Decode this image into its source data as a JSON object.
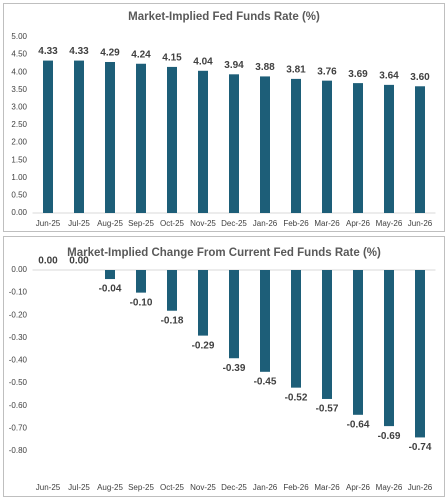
{
  "chart_data": [
    {
      "type": "bar",
      "title": "Market-Implied Fed Funds Rate (%)",
      "categories": [
        "Jun-25",
        "Jul-25",
        "Aug-25",
        "Sep-25",
        "Oct-25",
        "Nov-25",
        "Dec-25",
        "Jan-26",
        "Feb-26",
        "Mar-26",
        "Apr-26",
        "May-26",
        "Jun-26"
      ],
      "values": [
        4.33,
        4.33,
        4.29,
        4.24,
        4.15,
        4.04,
        3.94,
        3.88,
        3.81,
        3.76,
        3.69,
        3.64,
        3.6
      ],
      "value_labels": [
        "4.33",
        "4.33",
        "4.29",
        "4.24",
        "4.15",
        "4.04",
        "3.94",
        "3.88",
        "3.81",
        "3.76",
        "3.69",
        "3.64",
        "3.60"
      ],
      "color": "#1d5e78",
      "ylim": [
        0,
        5
      ],
      "yticks": [
        {
          "value": 0,
          "label": "0.00"
        },
        {
          "value": 0.5,
          "label": "0.50"
        },
        {
          "value": 1,
          "label": "1.00"
        },
        {
          "value": 1.5,
          "label": "1.50"
        },
        {
          "value": 2,
          "label": "2.00"
        },
        {
          "value": 2.5,
          "label": "2.50"
        },
        {
          "value": 3,
          "label": "3.00"
        },
        {
          "value": 3.5,
          "label": "3.50"
        },
        {
          "value": 4,
          "label": "4.00"
        },
        {
          "value": 4.5,
          "label": "4.50"
        },
        {
          "value": 5,
          "label": "5.00"
        }
      ],
      "grid": false
    },
    {
      "type": "bar",
      "title": "Market-Implied Change From Current Fed Funds Rate (%)",
      "categories": [
        "Jun-25",
        "Jul-25",
        "Aug-25",
        "Sep-25",
        "Oct-25",
        "Nov-25",
        "Dec-25",
        "Jan-26",
        "Feb-26",
        "Mar-26",
        "Apr-26",
        "May-26",
        "Jun-26"
      ],
      "values": [
        0,
        0,
        -0.04,
        -0.1,
        -0.18,
        -0.29,
        -0.39,
        -0.45,
        -0.52,
        -0.57,
        -0.64,
        -0.69,
        -0.74
      ],
      "value_labels": [
        "0.00",
        "0.00",
        "-0.04",
        "-0.10",
        "-0.18",
        "-0.29",
        "-0.39",
        "-0.45",
        "-0.52",
        "-0.57",
        "-0.64",
        "-0.69",
        "-0.74"
      ],
      "color": "#1d5e78",
      "ylim": [
        -0.8,
        0
      ],
      "yticks": [
        {
          "value": 0,
          "label": "0.00"
        },
        {
          "value": -0.1,
          "label": "-0.10"
        },
        {
          "value": -0.2,
          "label": "-0.20"
        },
        {
          "value": -0.3,
          "label": "-0.30"
        },
        {
          "value": -0.4,
          "label": "-0.40"
        },
        {
          "value": -0.5,
          "label": "-0.50"
        },
        {
          "value": -0.6,
          "label": "-0.60"
        },
        {
          "value": -0.7,
          "label": "-0.70"
        },
        {
          "value": -0.8,
          "label": "-0.80"
        }
      ],
      "grid": false
    }
  ]
}
